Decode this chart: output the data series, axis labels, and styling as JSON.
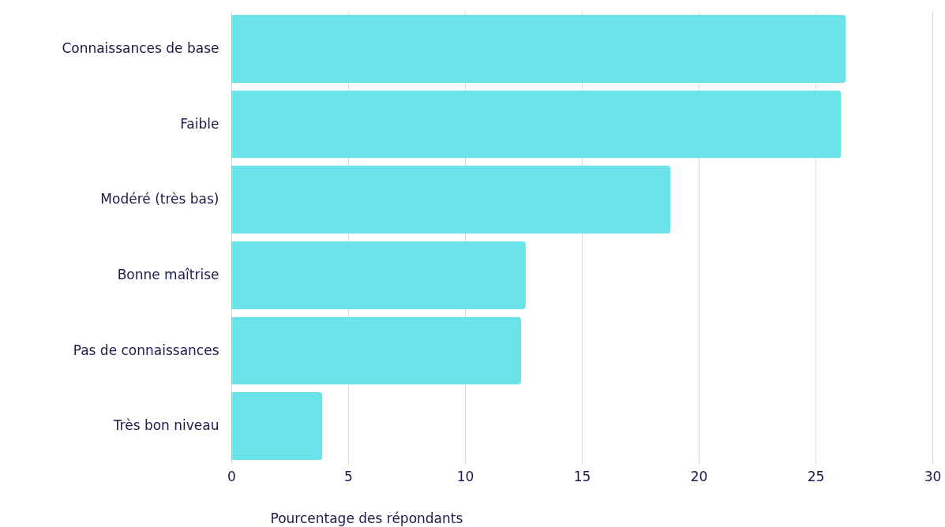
{
  "chart_data": {
    "type": "bar",
    "orientation": "horizontal",
    "xlabel": "Pourcentage des répondants",
    "categories": [
      "Connaissances de base",
      "Faible",
      "Modéré (très bas)",
      "Bonne maîtrise",
      "Pas de connaissances",
      "Très bon niveau"
    ],
    "values": [
      26.3,
      26.1,
      18.8,
      12.6,
      12.4,
      3.9
    ],
    "color": "#6ae4e8",
    "xlim": [
      0,
      30
    ],
    "xticks": [
      0,
      5,
      10,
      15,
      20,
      25,
      30
    ],
    "grid": "x"
  }
}
